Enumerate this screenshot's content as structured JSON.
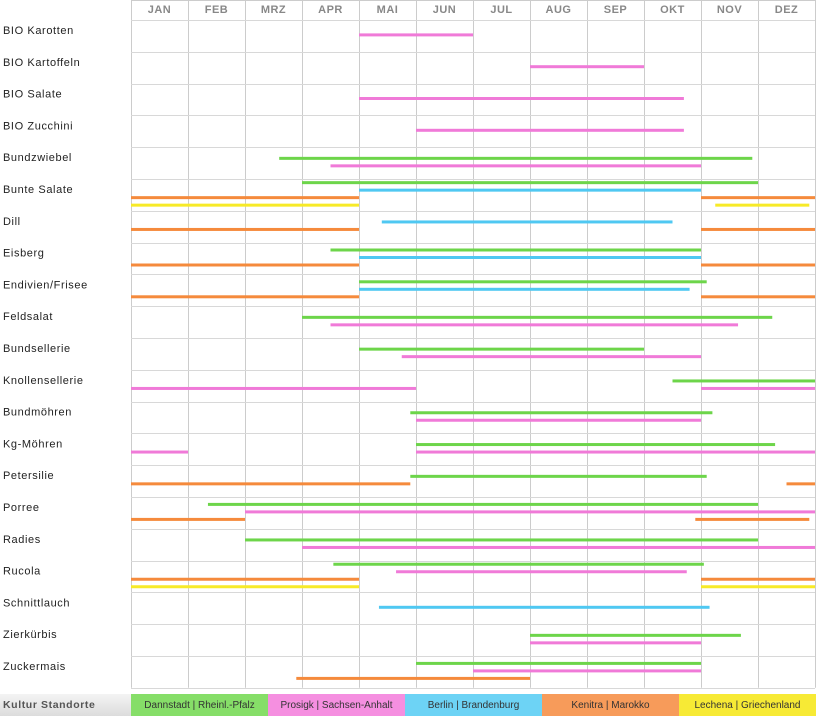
{
  "legend": {
    "title": "Kultur Standorte",
    "sites": [
      {
        "key": "danstadt",
        "label": "Dannstadt | Rheinl.-Pfalz",
        "color": "#6dd54a",
        "bg": "#86de68"
      },
      {
        "key": "prosigk",
        "label": "Prosigk | Sachsen-Anhalt",
        "color": "#f07ad8",
        "bg": "#f58fe0"
      },
      {
        "key": "berlin",
        "label": "Berlin | Brandenburg",
        "color": "#4fc8f2",
        "bg": "#6dd3f5"
      },
      {
        "key": "kenitra",
        "label": "Kenitra | Marokko",
        "color": "#f58a3c",
        "bg": "#f79b5a"
      },
      {
        "key": "lechena",
        "label": "Lechena | Griechenland",
        "color": "#f7ea27",
        "bg": "#f7ea35"
      }
    ]
  },
  "chart_data": {
    "type": "gantt",
    "months": [
      "JAN",
      "FEB",
      "MRZ",
      "APR",
      "MAI",
      "JUN",
      "JUL",
      "AUG",
      "SEP",
      "OKT",
      "NOV",
      "DEZ"
    ],
    "x_unit": "month (0 = start of JAN, 12 = end of DEZ)",
    "crops": [
      {
        "name": "BIO Karotten",
        "bars": [
          {
            "site": "prosigk",
            "start": 4.0,
            "end": 6.0
          }
        ]
      },
      {
        "name": "BIO Kartoffeln",
        "bars": [
          {
            "site": "prosigk",
            "start": 7.0,
            "end": 9.0
          }
        ]
      },
      {
        "name": "BIO Salate",
        "bars": [
          {
            "site": "prosigk",
            "start": 4.0,
            "end": 9.7
          }
        ]
      },
      {
        "name": "BIO Zucchini",
        "bars": [
          {
            "site": "prosigk",
            "start": 5.0,
            "end": 9.7
          }
        ]
      },
      {
        "name": "Bundzwiebel",
        "bars": [
          {
            "site": "danstadt",
            "start": 2.6,
            "end": 10.9
          },
          {
            "site": "prosigk",
            "start": 3.5,
            "end": 10.0
          }
        ]
      },
      {
        "name": "Bunte Salate",
        "bars": [
          {
            "site": "danstadt",
            "start": 3.0,
            "end": 11.0
          },
          {
            "site": "berlin",
            "start": 4.0,
            "end": 10.0
          },
          {
            "site": "kenitra",
            "start": 0.0,
            "end": 4.0
          },
          {
            "site": "kenitra",
            "start": 10.0,
            "end": 12.0
          },
          {
            "site": "lechena",
            "start": 0.0,
            "end": 4.0
          },
          {
            "site": "lechena",
            "start": 10.25,
            "end": 11.9
          }
        ]
      },
      {
        "name": "Dill",
        "bars": [
          {
            "site": "berlin",
            "start": 4.4,
            "end": 9.5
          },
          {
            "site": "kenitra",
            "start": 0.0,
            "end": 4.0
          },
          {
            "site": "kenitra",
            "start": 10.0,
            "end": 12.0
          }
        ]
      },
      {
        "name": "Eisberg",
        "bars": [
          {
            "site": "danstadt",
            "start": 3.5,
            "end": 10.0
          },
          {
            "site": "berlin",
            "start": 4.0,
            "end": 10.0
          },
          {
            "site": "kenitra",
            "start": 0.0,
            "end": 4.0
          },
          {
            "site": "kenitra",
            "start": 10.0,
            "end": 12.0
          }
        ]
      },
      {
        "name": "Endivien/Frisee",
        "bars": [
          {
            "site": "danstadt",
            "start": 4.0,
            "end": 10.1
          },
          {
            "site": "berlin",
            "start": 4.0,
            "end": 9.8
          },
          {
            "site": "kenitra",
            "start": 0.0,
            "end": 4.0
          },
          {
            "site": "kenitra",
            "start": 10.0,
            "end": 12.0
          }
        ]
      },
      {
        "name": "Feldsalat",
        "bars": [
          {
            "site": "danstadt",
            "start": 3.0,
            "end": 11.25
          },
          {
            "site": "prosigk",
            "start": 3.5,
            "end": 10.65
          }
        ]
      },
      {
        "name": "Bundsellerie",
        "bars": [
          {
            "site": "danstadt",
            "start": 4.0,
            "end": 9.0
          },
          {
            "site": "prosigk",
            "start": 4.75,
            "end": 10.0
          }
        ]
      },
      {
        "name": "Knollensellerie",
        "bars": [
          {
            "site": "danstadt",
            "start": 9.5,
            "end": 12.0
          },
          {
            "site": "prosigk",
            "start": 0.0,
            "end": 5.0
          },
          {
            "site": "prosigk",
            "start": 10.0,
            "end": 12.0
          }
        ]
      },
      {
        "name": "Bundmöhren",
        "bars": [
          {
            "site": "danstadt",
            "start": 4.9,
            "end": 10.2
          },
          {
            "site": "prosigk",
            "start": 5.0,
            "end": 10.0
          }
        ]
      },
      {
        "name": "Kg-Möhren",
        "bars": [
          {
            "site": "danstadt",
            "start": 5.0,
            "end": 11.3
          },
          {
            "site": "prosigk",
            "start": 0.0,
            "end": 1.0
          },
          {
            "site": "prosigk",
            "start": 5.0,
            "end": 12.0
          }
        ]
      },
      {
        "name": "Petersilie",
        "bars": [
          {
            "site": "danstadt",
            "start": 4.9,
            "end": 10.1
          },
          {
            "site": "kenitra",
            "start": 0.0,
            "end": 4.9
          },
          {
            "site": "kenitra",
            "start": 11.5,
            "end": 12.0
          }
        ]
      },
      {
        "name": "Porree",
        "bars": [
          {
            "site": "danstadt",
            "start": 1.35,
            "end": 11.0
          },
          {
            "site": "prosigk",
            "start": 2.0,
            "end": 12.0
          },
          {
            "site": "kenitra",
            "start": 0.0,
            "end": 2.0
          },
          {
            "site": "kenitra",
            "start": 9.9,
            "end": 11.9
          }
        ]
      },
      {
        "name": "Radies",
        "bars": [
          {
            "site": "danstadt",
            "start": 2.0,
            "end": 11.0
          },
          {
            "site": "prosigk",
            "start": 3.0,
            "end": 12.0
          }
        ]
      },
      {
        "name": "Rucola",
        "bars": [
          {
            "site": "danstadt",
            "start": 3.55,
            "end": 10.05
          },
          {
            "site": "prosigk",
            "start": 4.65,
            "end": 9.75
          },
          {
            "site": "kenitra",
            "start": 0.0,
            "end": 4.0
          },
          {
            "site": "kenitra",
            "start": 10.0,
            "end": 12.0
          },
          {
            "site": "lechena",
            "start": 0.0,
            "end": 4.0
          },
          {
            "site": "lechena",
            "start": 10.0,
            "end": 12.0
          }
        ]
      },
      {
        "name": "Schnittlauch",
        "bars": [
          {
            "site": "berlin",
            "start": 4.35,
            "end": 10.15
          }
        ]
      },
      {
        "name": "Zierkürbis",
        "bars": [
          {
            "site": "danstadt",
            "start": 7.0,
            "end": 10.7
          },
          {
            "site": "prosigk",
            "start": 7.0,
            "end": 10.0
          }
        ]
      },
      {
        "name": "Zuckermais",
        "bars": [
          {
            "site": "danstadt",
            "start": 5.0,
            "end": 10.0
          },
          {
            "site": "prosigk",
            "start": 6.0,
            "end": 10.0
          },
          {
            "site": "kenitra",
            "start": 2.9,
            "end": 7.0
          }
        ]
      }
    ]
  }
}
